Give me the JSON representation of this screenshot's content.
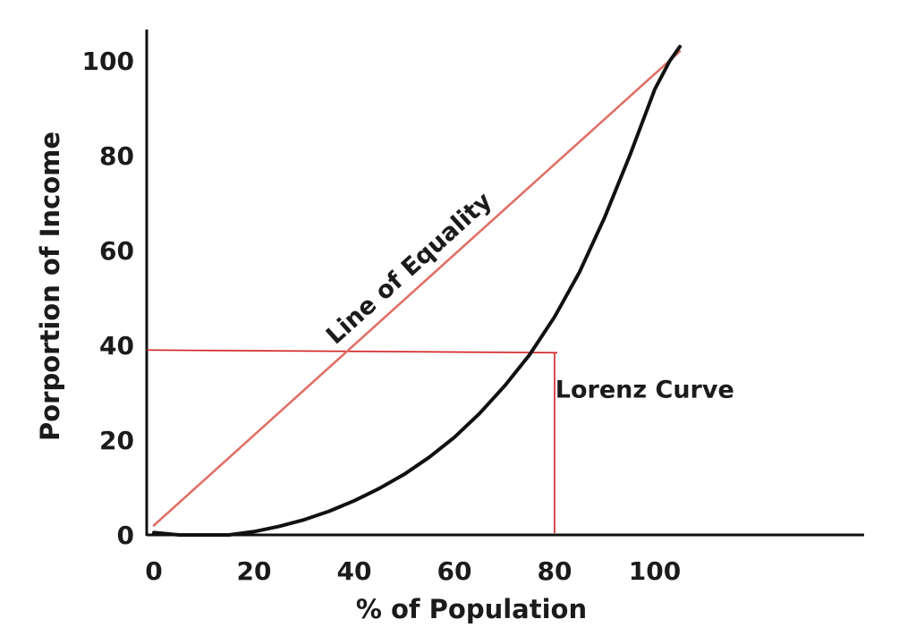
{
  "chart_data": {
    "type": "line",
    "xlabel": "% of Population",
    "ylabel": "Porportion of Income",
    "xlim": [
      0,
      108
    ],
    "ylim": [
      0,
      100
    ],
    "x_ticks": [
      "0",
      "20",
      "40",
      "60",
      "80",
      "100"
    ],
    "y_ticks": [
      "0",
      "20",
      "40",
      "60",
      "80",
      "100"
    ],
    "grid": false,
    "series": [
      {
        "name": "Line of Equality",
        "color": "#e07068",
        "x": [
          0,
          105
        ],
        "y": [
          2,
          102
        ]
      },
      {
        "name": "Lorenz Curve",
        "color": "#111111",
        "x": [
          0,
          5,
          10,
          15,
          20,
          25,
          30,
          35,
          40,
          45,
          50,
          55,
          60,
          65,
          70,
          75,
          80,
          85,
          90,
          95,
          100,
          103,
          105
        ],
        "y": [
          0.5,
          0,
          0,
          0,
          0.7,
          1.8,
          3.2,
          5,
          7.2,
          9.8,
          12.8,
          16.4,
          20.6,
          25.6,
          31.4,
          38,
          46,
          55.5,
          67,
          80,
          94,
          100,
          103
        ]
      }
    ],
    "reference_lines": {
      "color": "#d42020",
      "horizontal_y": 39,
      "vertical_x": 80
    },
    "annotations": [
      {
        "text": "Line of Equality",
        "x": 52,
        "y": 55
      },
      {
        "text": "Lorenz Curve",
        "x": 98,
        "y": 29
      }
    ]
  }
}
